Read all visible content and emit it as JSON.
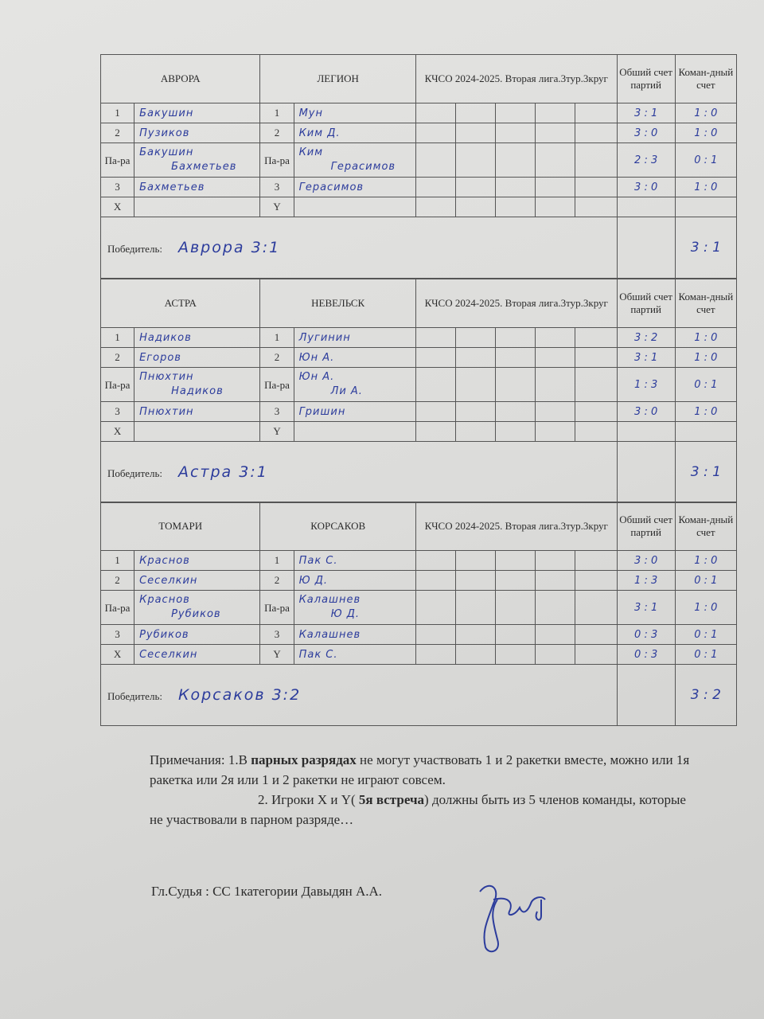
{
  "labels": {
    "pair": "Па-ра",
    "x": "X",
    "y": "Y",
    "winner": "Победитель:",
    "total_sets": "Обший счет партий",
    "team_score": "Коман-дный счет"
  },
  "matches": [
    {
      "team_a": "АВРОРА",
      "team_b": "ЛЕГИОН",
      "title": "КЧСО 2024-2025.  Вторая лига.3тур.3круг",
      "rows": [
        {
          "n": "1",
          "a": "Бакушин",
          "m": "1",
          "b": "Мун",
          "sets": "3 : 1",
          "team": "1 : 0"
        },
        {
          "n": "2",
          "a": "Пузиков",
          "m": "2",
          "b": "Ким Д.",
          "sets": "3 : 0",
          "team": "1 : 0"
        },
        {
          "pair": true,
          "a1": "Бакушин",
          "a2": "Бахметьев",
          "b1": "Ким",
          "b2": "Герасимов",
          "sets": "2 : 3",
          "team": "0 : 1"
        },
        {
          "n": "3",
          "a": "Бахметьев",
          "m": "3",
          "b": "Герасимов",
          "sets": "3 : 0",
          "team": "1 : 0"
        },
        {
          "n": "X",
          "a": "",
          "m": "Y",
          "b": "",
          "sets": "",
          "team": ""
        }
      ],
      "winner": "Аврора  3:1",
      "winner_score": "3 : 1"
    },
    {
      "team_a": "АСТРА",
      "team_b": "НЕВЕЛЬСК",
      "title": "КЧСО 2024-2025. Вторая лига.3тур.3круг",
      "rows": [
        {
          "n": "1",
          "a": "Надиков",
          "m": "1",
          "b": "Лугинин",
          "sets": "3 : 2",
          "team": "1 : 0"
        },
        {
          "n": "2",
          "a": "Егоров",
          "m": "2",
          "b": "Юн А.",
          "sets": "3 : 1",
          "team": "1 : 0"
        },
        {
          "pair": true,
          "a1": "Пнюхтин",
          "a2": "Надиков",
          "b1": "Юн А.",
          "b2": "Ли А.",
          "sets": "1 : 3",
          "team": "0 : 1"
        },
        {
          "n": "3",
          "a": "Пнюхтин",
          "m": "3",
          "b": "Гришин",
          "sets": "3 : 0",
          "team": "1 : 0"
        },
        {
          "n": "X",
          "a": "",
          "m": "Y",
          "b": "",
          "sets": "",
          "team": ""
        }
      ],
      "winner": "Астра  3:1",
      "winner_score": "3 : 1"
    },
    {
      "team_a": "ТОМАРИ",
      "team_b": "КОРСАКОВ",
      "title": "КЧСО 2024-2025.  Вторая лига.3тур.3круг",
      "rows": [
        {
          "n": "1",
          "a": "Краснов",
          "m": "1",
          "b": "Пак С.",
          "sets": "3 : 0",
          "team": "1 : 0"
        },
        {
          "n": "2",
          "a": "Сеселкин",
          "m": "2",
          "b": "Ю Д.",
          "sets": "1 : 3",
          "team": "0 : 1"
        },
        {
          "pair": true,
          "a1": "Краснов",
          "a2": "Рубиков",
          "b1": "Калашнев",
          "b2": "Ю Д.",
          "sets": "3 : 1",
          "team": "1 : 0"
        },
        {
          "n": "3",
          "a": "Рубиков",
          "m": "3",
          "b": "Калашнев",
          "sets": "0 : 3",
          "team": "0 : 1"
        },
        {
          "n": "X",
          "a": "Сеселкин",
          "m": "Y",
          "b": "Пак С.",
          "sets": "0 : 3",
          "team": "0 : 1"
        }
      ],
      "winner": "Корсаков  3:2",
      "winner_score": "3 : 2"
    }
  ],
  "notes": {
    "prefix": "Примечания:   1.В ",
    "bold1": "парных разрядах",
    "rest1": " не могут участвовать 1 и 2 ракетки вместе, можно или 1я ракетка или 2я или 1 и 2 ракетки не играют совсем.",
    "p2a": "2. Игроки  X и Y( ",
    "bold2": "5я встреча",
    "p2b": ") должны быть из 5 членов команды, которые  не   участвовали в парном разряде…"
  },
  "judge": "Гл.Судья : СС 1категории    Давыдян А.А."
}
